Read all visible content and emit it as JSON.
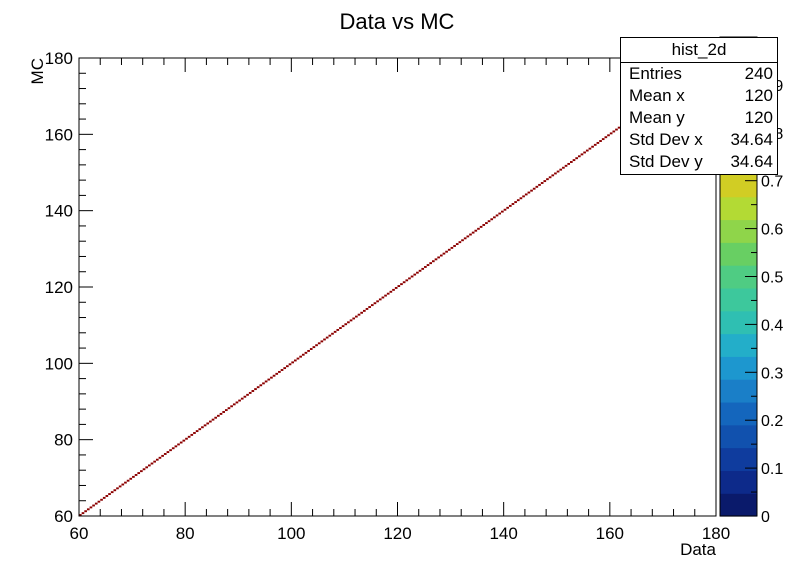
{
  "chart_data": {
    "type": "heatmap",
    "title": "Data vs MC",
    "xlabel": "Data",
    "ylabel": "MC",
    "xlim": [
      60,
      180
    ],
    "ylim": [
      60,
      180
    ],
    "x_ticks": [
      60,
      80,
      100,
      120,
      140,
      160,
      180
    ],
    "y_ticks": [
      60,
      80,
      100,
      120,
      140,
      160,
      180
    ],
    "z_range": [
      0,
      1
    ],
    "z_ticks": [
      "0",
      "0.1",
      "0.2",
      "0.3",
      "0.4",
      "0.5",
      "0.6",
      "0.7",
      "0.8",
      "0.9"
    ],
    "palette": [
      "#0a1a6b",
      "#0d2a8a",
      "#0f3c9e",
      "#1151ae",
      "#1466bd",
      "#1a7fc8",
      "#1d97cf",
      "#23aec9",
      "#2fbfb2",
      "#3dc89c",
      "#4fcc83",
      "#68cf63",
      "#8fd54a",
      "#b3da34",
      "#d1cd24",
      "#d9b01e",
      "#d8901a",
      "#d66a15",
      "#c84112",
      "#b02410",
      "#8f0f0d"
    ],
    "bins": {
      "x_start": 60,
      "x_end": 180,
      "count": 240,
      "diagonal_from": 60,
      "diagonal_to": 162,
      "value": 1,
      "color": "#8b0000"
    }
  },
  "stats_box": {
    "title": "hist_2d",
    "rows": [
      {
        "label": "Entries",
        "value": "240"
      },
      {
        "label": "Mean x",
        "value": "120"
      },
      {
        "label": "Mean y",
        "value": "120"
      },
      {
        "label": "Std Dev x",
        "value": "34.64"
      },
      {
        "label": "Std Dev y",
        "value": "34.64"
      }
    ]
  }
}
